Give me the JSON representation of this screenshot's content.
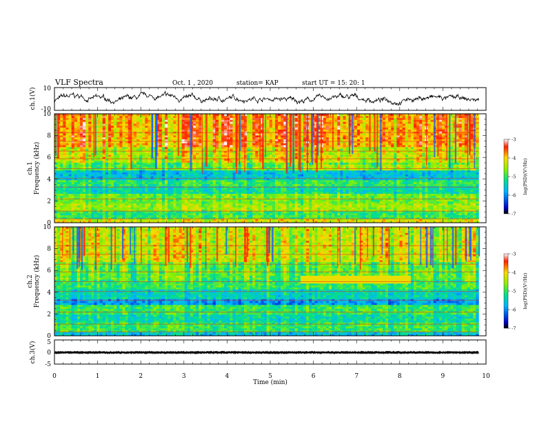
{
  "header": {
    "title": "VLF Spectra",
    "date": "Oct. 1  , 2020",
    "station": "station= KAP",
    "start_time": "start  UT =   15: 20: 1"
  },
  "chart_data": [
    {
      "type": "line",
      "panel": "ch1-waveform",
      "ylabel": "ch.1(V)",
      "ylim": [
        -10,
        10
      ],
      "y_ticks": [
        "10",
        "-10"
      ],
      "xlim": [
        0,
        10
      ],
      "x_end": 9.83,
      "description_values": "noisy waveform oscillating mostly between about -6 and +6 V"
    },
    {
      "type": "heatmap",
      "panel": "ch1-spectrogram",
      "ylabel": "ch.1\nFrequency  (kHz)",
      "ylim": [
        0,
        10
      ],
      "y_ticks": [
        "0",
        "2",
        "4",
        "6",
        "8",
        "10"
      ],
      "xlim": [
        0,
        10
      ],
      "x_end": 9.83,
      "colorbar": {
        "label": "log(PSD)(V²/Hz)",
        "range": [
          -7,
          -3
        ],
        "ticks": [
          "-3",
          "-4",
          "-5",
          "-6",
          "-7"
        ]
      },
      "bands": [
        {
          "from": 0,
          "to": 0.4,
          "level": -4.2
        },
        {
          "from": 0.4,
          "to": 1.0,
          "level": -5.0
        },
        {
          "from": 1.0,
          "to": 1.8,
          "level": -4.5
        },
        {
          "from": 1.8,
          "to": 2.6,
          "level": -4.7
        },
        {
          "from": 2.6,
          "to": 3.4,
          "level": -5.3
        },
        {
          "from": 3.4,
          "to": 4.0,
          "level": -5.0
        },
        {
          "from": 4.0,
          "to": 4.8,
          "level": -5.6
        },
        {
          "from": 4.8,
          "to": 5.6,
          "level": -4.8
        },
        {
          "from": 5.6,
          "to": 7.0,
          "level": -4.3
        },
        {
          "from": 7.0,
          "to": 10.0,
          "level": -3.8
        }
      ]
    },
    {
      "type": "heatmap",
      "panel": "ch2-spectrogram",
      "ylabel": "ch.2\nFrequency  (kHz)",
      "ylim": [
        0,
        10
      ],
      "y_ticks": [
        "0",
        "2",
        "4",
        "6",
        "8",
        "10"
      ],
      "xlim": [
        0,
        10
      ],
      "x_end": 9.83,
      "colorbar": {
        "label": "log(PSD)(V²/Hz)",
        "range": [
          -7,
          -3
        ],
        "ticks": [
          "-3",
          "-4",
          "-5",
          "-6",
          "-7"
        ]
      },
      "bands": [
        {
          "from": 0,
          "to": 0.4,
          "level": -5.6
        },
        {
          "from": 0.4,
          "to": 1.2,
          "level": -5.0
        },
        {
          "from": 1.2,
          "to": 2.0,
          "level": -5.3
        },
        {
          "from": 2.0,
          "to": 2.8,
          "level": -5.0
        },
        {
          "from": 2.8,
          "to": 3.4,
          "level": -5.9
        },
        {
          "from": 3.4,
          "to": 4.2,
          "level": -5.4
        },
        {
          "from": 4.2,
          "to": 5.2,
          "level": -5.0
        },
        {
          "from": 5.2,
          "to": 6.8,
          "level": -4.8
        },
        {
          "from": 6.8,
          "to": 10.0,
          "level": -4.3
        }
      ]
    },
    {
      "type": "line",
      "panel": "ch3-waveform",
      "ylabel": "ch.3(V)",
      "ylim": [
        -5,
        5
      ],
      "y_ticks": [
        "5",
        "0",
        "-5"
      ],
      "xlim": [
        0,
        10
      ],
      "x_end": 9.83,
      "xlabel": "Time  (min)",
      "x_ticks": [
        "0",
        "1",
        "2",
        "3",
        "4",
        "5",
        "6",
        "7",
        "8",
        "9",
        "10"
      ],
      "description_values": "dense band centred near 0 V, roughly -0.5 to +0.5 V"
    }
  ]
}
